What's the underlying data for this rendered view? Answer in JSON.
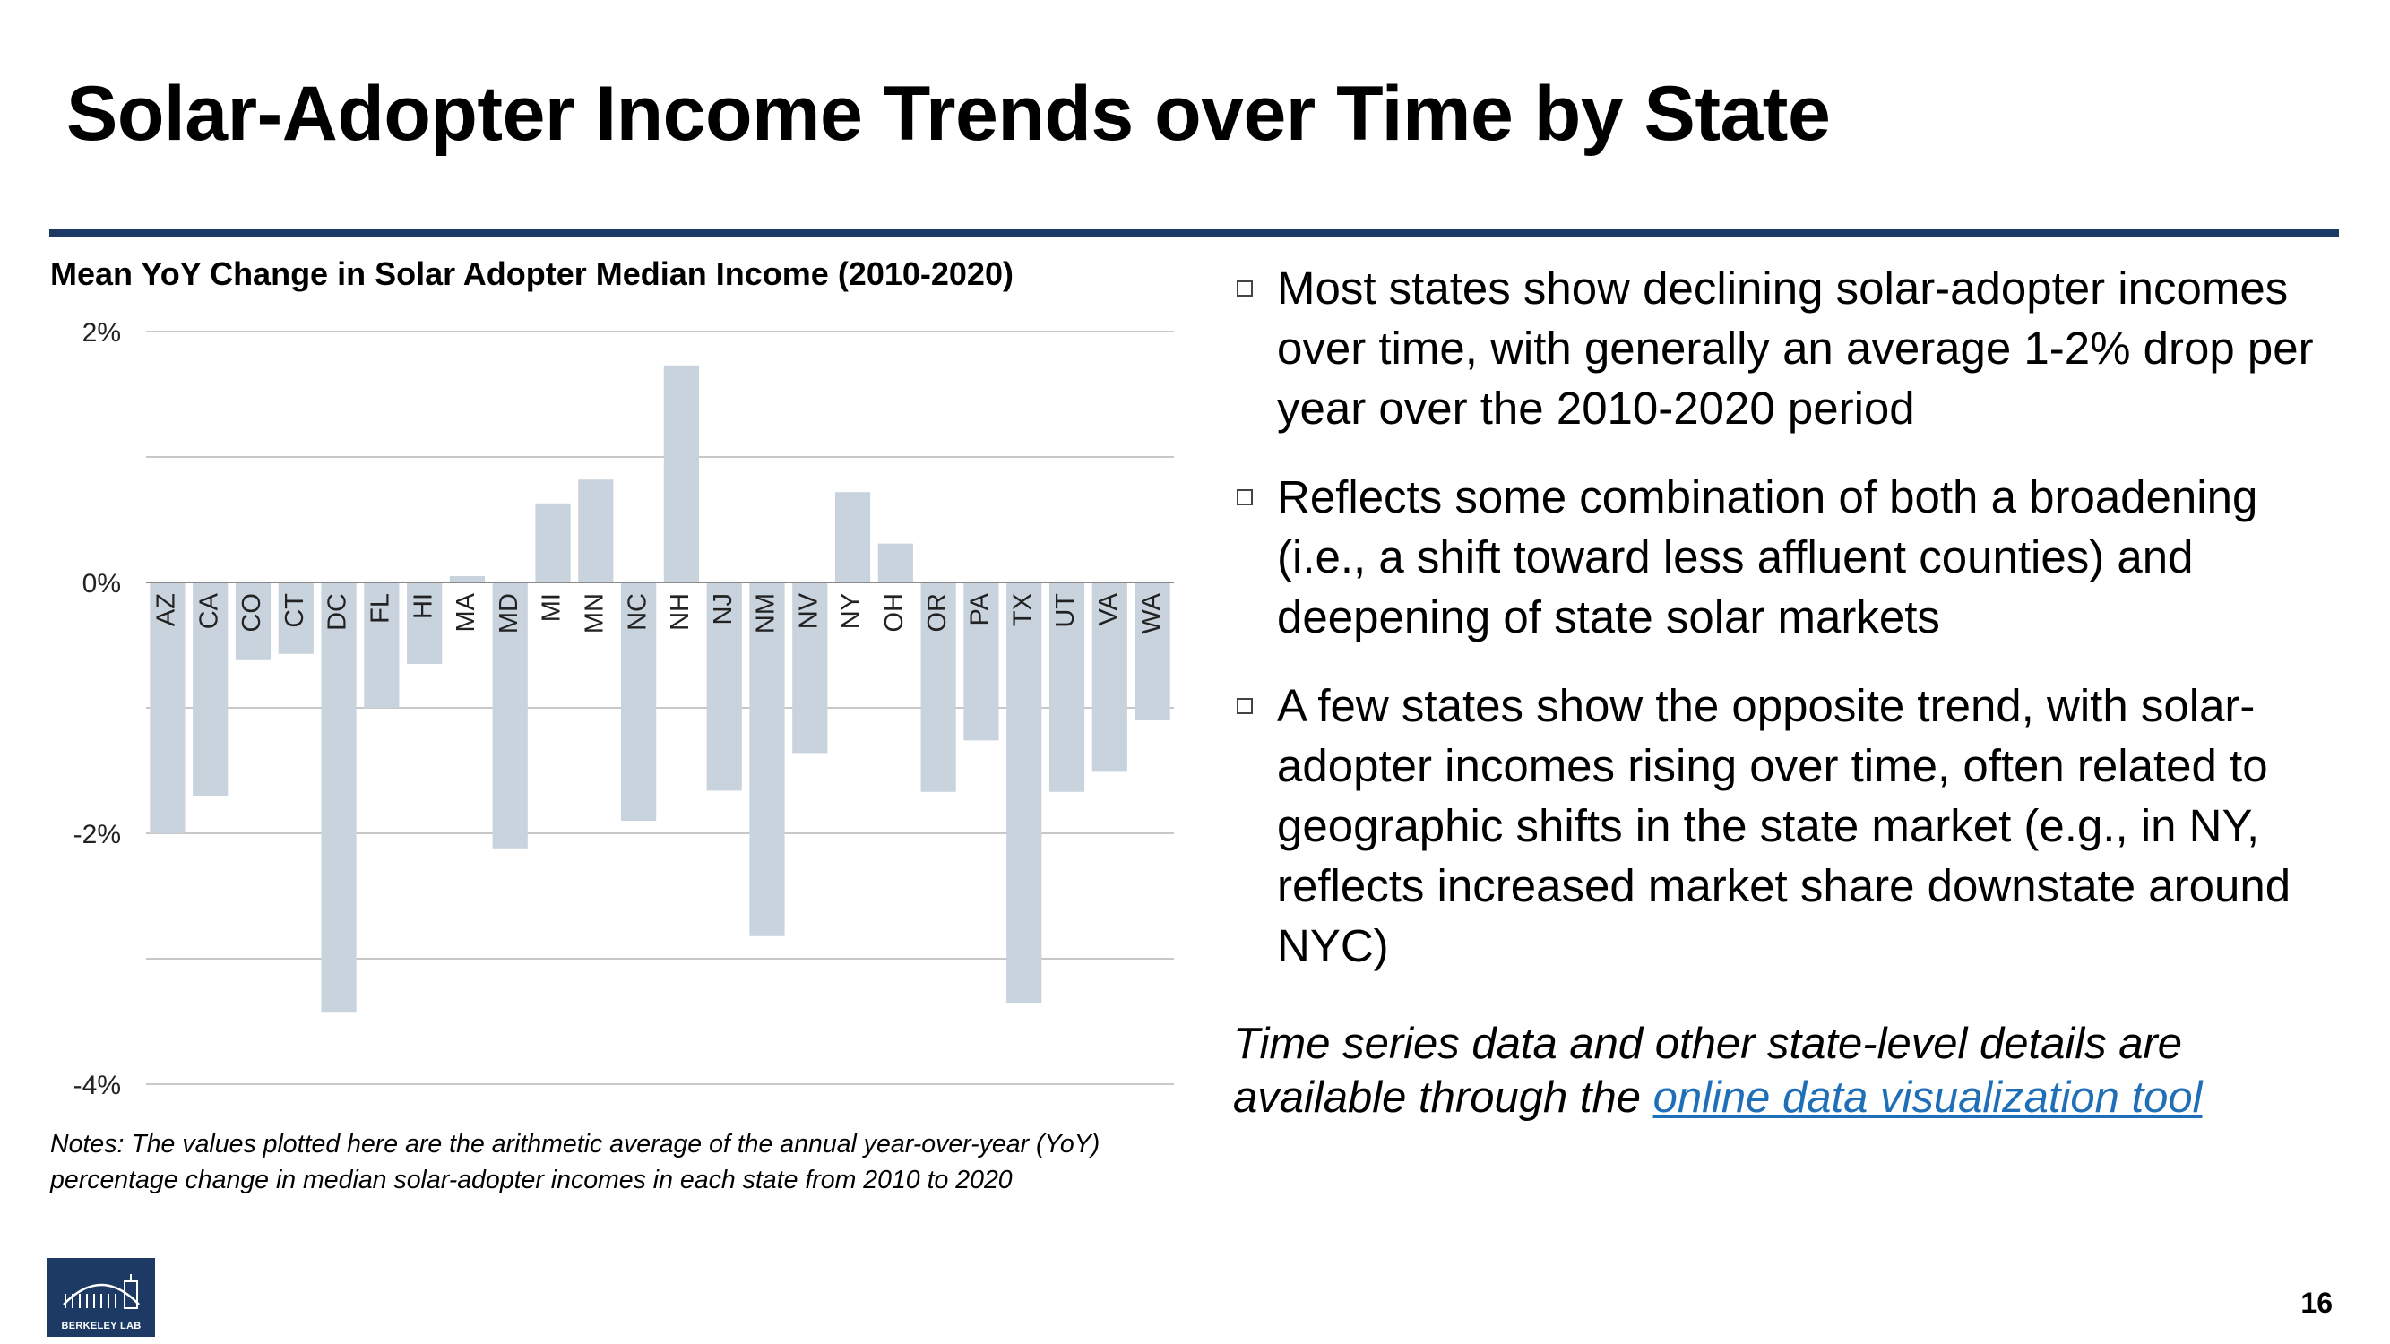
{
  "slide": {
    "title": "Solar-Adopter Income Trends over Time by State",
    "accent_color": "#1c3a63",
    "page_number": "16"
  },
  "chart_data": {
    "type": "bar",
    "title": "Mean YoY Change in Solar Adopter Median Income (2010-2020)",
    "xlabel": "",
    "ylabel": "",
    "ylim": [
      -4,
      2
    ],
    "y_ticks": [
      2,
      1,
      0,
      -1,
      -2,
      -3,
      -4
    ],
    "y_tick_labels": [
      "2%",
      "",
      "0%",
      "",
      "-2%",
      "",
      "-4%"
    ],
    "grid": true,
    "bar_color": "#c9d3de",
    "categories": [
      "AZ",
      "CA",
      "CO",
      "CT",
      "DC",
      "FL",
      "HI",
      "MA",
      "MD",
      "MI",
      "MN",
      "NC",
      "NH",
      "NJ",
      "NM",
      "NV",
      "NY",
      "OH",
      "OR",
      "PA",
      "TX",
      "UT",
      "VA",
      "WA"
    ],
    "values": [
      -2.0,
      -1.7,
      -0.62,
      -0.57,
      -3.43,
      -1.0,
      -0.65,
      0.05,
      -2.12,
      0.63,
      0.82,
      -1.9,
      1.73,
      -1.66,
      -2.82,
      -1.36,
      0.72,
      0.31,
      -1.67,
      -1.26,
      -3.35,
      -1.67,
      -1.51,
      -1.1
    ]
  },
  "notes": "Notes: The values plotted here are the arithmetic average of the annual year-over-year (YoY) percentage change in median solar-adopter incomes in each state from 2010 to 2020",
  "bullets": [
    "Most states show declining solar-adopter incomes over time, with generally an average 1-2% drop per year over the 2010-2020 period",
    "Reflects some combination of both a broadening (i.e., a shift toward less affluent counties) and deepening of state solar markets",
    "A few states show the opposite trend, with solar-adopter incomes rising over time, often related to geographic shifts in the state market (e.g., in NY, reflects increased market share downstate around NYC)"
  ],
  "footnote": {
    "text": "Time series data and other state-level details are available through the ",
    "link_text": "online data visualization tool",
    "link_color": "#1f6fb8"
  },
  "logo": {
    "text": "BERKELEY LAB"
  }
}
